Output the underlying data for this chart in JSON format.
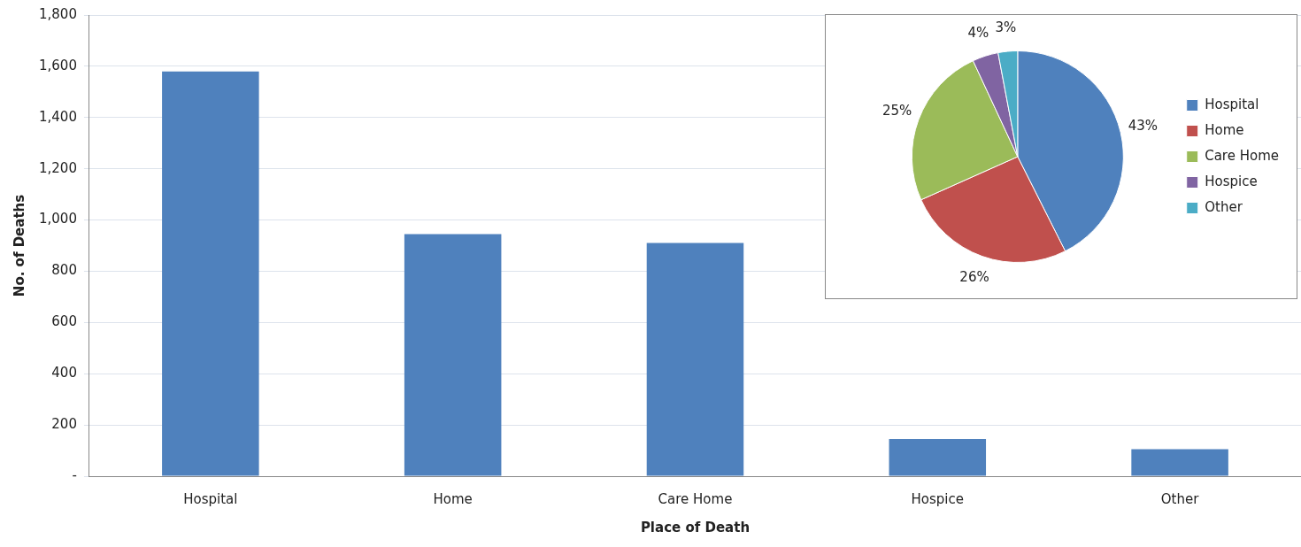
{
  "chart_data": [
    {
      "type": "bar",
      "xlabel": "Place of Death",
      "ylabel": "No. of Deaths",
      "categories": [
        "Hospital",
        "Home",
        "Care Home",
        "Hospice",
        "Other"
      ],
      "values": [
        1580,
        945,
        910,
        145,
        105
      ],
      "color": "#4f81bd",
      "ylim": [
        0,
        1800
      ],
      "yticks": [
        {
          "value": 0,
          "label": "-"
        },
        {
          "value": 200,
          "label": "200"
        },
        {
          "value": 400,
          "label": "400"
        },
        {
          "value": 600,
          "label": "600"
        },
        {
          "value": 800,
          "label": "800"
        },
        {
          "value": 1000,
          "label": "1,000"
        },
        {
          "value": 1200,
          "label": "1,200"
        },
        {
          "value": 1400,
          "label": "1,400"
        },
        {
          "value": 1600,
          "label": "1,600"
        },
        {
          "value": 1800,
          "label": "1,800"
        }
      ],
      "grid": "y",
      "legend": false
    },
    {
      "type": "pie",
      "categories": [
        "Hospital",
        "Home",
        "Care Home",
        "Hospice",
        "Other"
      ],
      "values": [
        43,
        26,
        25,
        4,
        3
      ],
      "colors": [
        "#4f81bd",
        "#c0504d",
        "#9bbb59",
        "#8064a2",
        "#4bacc6"
      ],
      "value_labels": [
        "43%",
        "26%",
        "25%",
        "4%",
        "3%"
      ],
      "legend": "right"
    }
  ]
}
